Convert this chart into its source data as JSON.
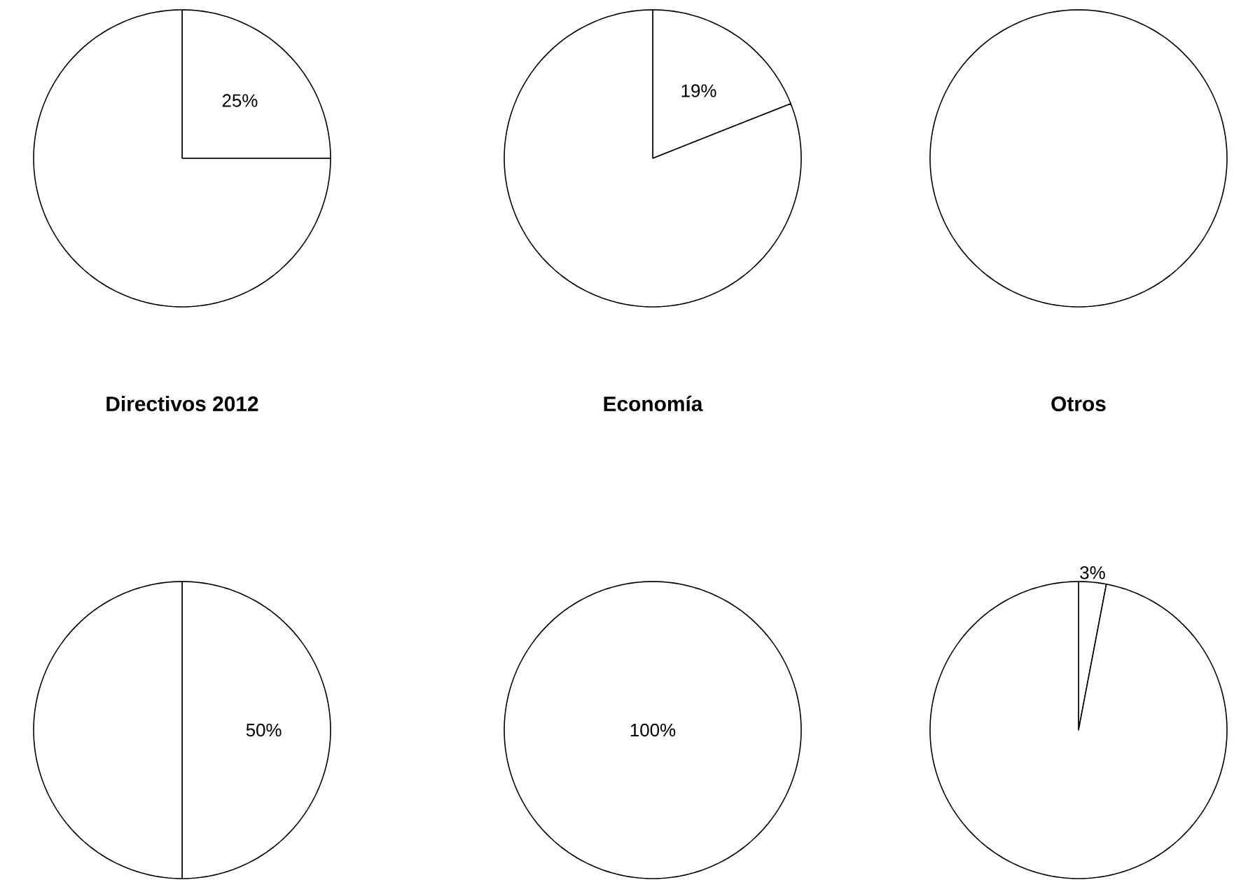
{
  "chart_data": [
    {
      "type": "pie",
      "categories": [
        null,
        null
      ],
      "values": [
        25,
        75
      ],
      "colors": [
        "#ffffff",
        "#ffffff"
      ],
      "value_labels": [
        "25%",
        null
      ]
    },
    {
      "type": "pie",
      "categories": [
        null,
        null
      ],
      "values": [
        19,
        81
      ],
      "colors": [
        "#ffffff",
        "#ffffff"
      ],
      "value_labels": [
        "19%",
        null
      ]
    },
    {
      "type": "pie",
      "categories": [
        null
      ],
      "values": [
        100
      ],
      "colors": [
        "#ffffff"
      ]
    },
    {
      "type": "pie",
      "title": "Directivos 2012",
      "categories": [
        null,
        null
      ],
      "values": [
        50,
        50
      ],
      "colors": [
        "#ffffff",
        "#ffffff"
      ],
      "value_labels": [
        "50%",
        null
      ]
    },
    {
      "type": "pie",
      "title": "Economía",
      "categories": [
        null
      ],
      "values": [
        100
      ],
      "colors": [
        "#ffffff"
      ],
      "value_labels": [
        "100%"
      ]
    },
    {
      "type": "pie",
      "title": "Otros",
      "categories": [
        null,
        null
      ],
      "values": [
        3,
        97
      ],
      "colors": [
        "#ffffff",
        "#ffffff"
      ],
      "value_labels": [
        "3%",
        null
      ]
    }
  ]
}
